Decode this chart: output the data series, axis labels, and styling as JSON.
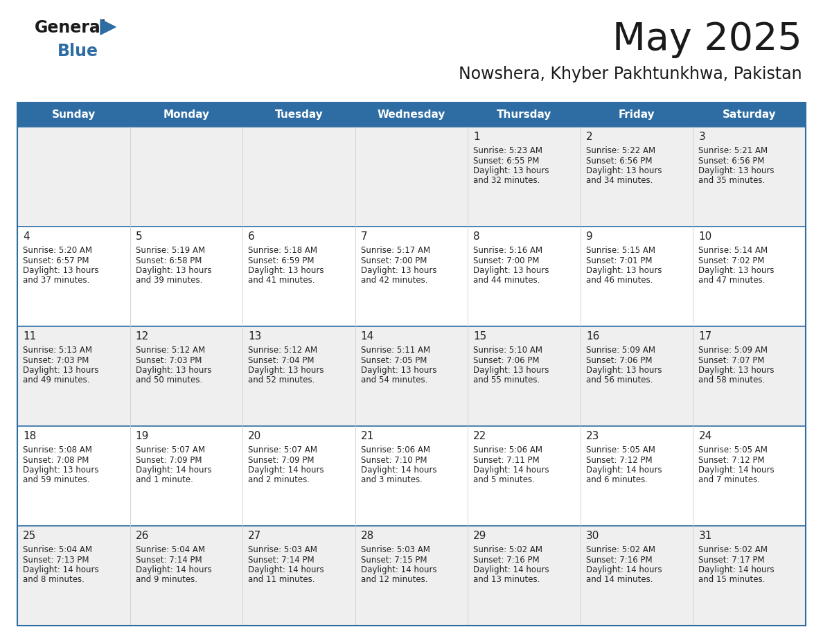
{
  "title": "May 2025",
  "subtitle": "Nowshera, Khyber Pakhtunkhwa, Pakistan",
  "days_of_week": [
    "Sunday",
    "Monday",
    "Tuesday",
    "Wednesday",
    "Thursday",
    "Friday",
    "Saturday"
  ],
  "header_bg": "#2E6DA4",
  "header_text": "#FFFFFF",
  "row_bg_odd": "#EFEFEF",
  "row_bg_even": "#FFFFFF",
  "cell_border": "#2E6DA4",
  "date_color": "#222222",
  "text_color": "#222222",
  "calendar_data": [
    [
      {
        "day": "",
        "sunrise": "",
        "sunset": "",
        "daylight": ""
      },
      {
        "day": "",
        "sunrise": "",
        "sunset": "",
        "daylight": ""
      },
      {
        "day": "",
        "sunrise": "",
        "sunset": "",
        "daylight": ""
      },
      {
        "day": "",
        "sunrise": "",
        "sunset": "",
        "daylight": ""
      },
      {
        "day": "1",
        "sunrise": "5:23 AM",
        "sunset": "6:55 PM",
        "daylight": "13 hours\nand 32 minutes."
      },
      {
        "day": "2",
        "sunrise": "5:22 AM",
        "sunset": "6:56 PM",
        "daylight": "13 hours\nand 34 minutes."
      },
      {
        "day": "3",
        "sunrise": "5:21 AM",
        "sunset": "6:56 PM",
        "daylight": "13 hours\nand 35 minutes."
      }
    ],
    [
      {
        "day": "4",
        "sunrise": "5:20 AM",
        "sunset": "6:57 PM",
        "daylight": "13 hours\nand 37 minutes."
      },
      {
        "day": "5",
        "sunrise": "5:19 AM",
        "sunset": "6:58 PM",
        "daylight": "13 hours\nand 39 minutes."
      },
      {
        "day": "6",
        "sunrise": "5:18 AM",
        "sunset": "6:59 PM",
        "daylight": "13 hours\nand 41 minutes."
      },
      {
        "day": "7",
        "sunrise": "5:17 AM",
        "sunset": "7:00 PM",
        "daylight": "13 hours\nand 42 minutes."
      },
      {
        "day": "8",
        "sunrise": "5:16 AM",
        "sunset": "7:00 PM",
        "daylight": "13 hours\nand 44 minutes."
      },
      {
        "day": "9",
        "sunrise": "5:15 AM",
        "sunset": "7:01 PM",
        "daylight": "13 hours\nand 46 minutes."
      },
      {
        "day": "10",
        "sunrise": "5:14 AM",
        "sunset": "7:02 PM",
        "daylight": "13 hours\nand 47 minutes."
      }
    ],
    [
      {
        "day": "11",
        "sunrise": "5:13 AM",
        "sunset": "7:03 PM",
        "daylight": "13 hours\nand 49 minutes."
      },
      {
        "day": "12",
        "sunrise": "5:12 AM",
        "sunset": "7:03 PM",
        "daylight": "13 hours\nand 50 minutes."
      },
      {
        "day": "13",
        "sunrise": "5:12 AM",
        "sunset": "7:04 PM",
        "daylight": "13 hours\nand 52 minutes."
      },
      {
        "day": "14",
        "sunrise": "5:11 AM",
        "sunset": "7:05 PM",
        "daylight": "13 hours\nand 54 minutes."
      },
      {
        "day": "15",
        "sunrise": "5:10 AM",
        "sunset": "7:06 PM",
        "daylight": "13 hours\nand 55 minutes."
      },
      {
        "day": "16",
        "sunrise": "5:09 AM",
        "sunset": "7:06 PM",
        "daylight": "13 hours\nand 56 minutes."
      },
      {
        "day": "17",
        "sunrise": "5:09 AM",
        "sunset": "7:07 PM",
        "daylight": "13 hours\nand 58 minutes."
      }
    ],
    [
      {
        "day": "18",
        "sunrise": "5:08 AM",
        "sunset": "7:08 PM",
        "daylight": "13 hours\nand 59 minutes."
      },
      {
        "day": "19",
        "sunrise": "5:07 AM",
        "sunset": "7:09 PM",
        "daylight": "14 hours\nand 1 minute."
      },
      {
        "day": "20",
        "sunrise": "5:07 AM",
        "sunset": "7:09 PM",
        "daylight": "14 hours\nand 2 minutes."
      },
      {
        "day": "21",
        "sunrise": "5:06 AM",
        "sunset": "7:10 PM",
        "daylight": "14 hours\nand 3 minutes."
      },
      {
        "day": "22",
        "sunrise": "5:06 AM",
        "sunset": "7:11 PM",
        "daylight": "14 hours\nand 5 minutes."
      },
      {
        "day": "23",
        "sunrise": "5:05 AM",
        "sunset": "7:12 PM",
        "daylight": "14 hours\nand 6 minutes."
      },
      {
        "day": "24",
        "sunrise": "5:05 AM",
        "sunset": "7:12 PM",
        "daylight": "14 hours\nand 7 minutes."
      }
    ],
    [
      {
        "day": "25",
        "sunrise": "5:04 AM",
        "sunset": "7:13 PM",
        "daylight": "14 hours\nand 8 minutes."
      },
      {
        "day": "26",
        "sunrise": "5:04 AM",
        "sunset": "7:14 PM",
        "daylight": "14 hours\nand 9 minutes."
      },
      {
        "day": "27",
        "sunrise": "5:03 AM",
        "sunset": "7:14 PM",
        "daylight": "14 hours\nand 11 minutes."
      },
      {
        "day": "28",
        "sunrise": "5:03 AM",
        "sunset": "7:15 PM",
        "daylight": "14 hours\nand 12 minutes."
      },
      {
        "day": "29",
        "sunrise": "5:02 AM",
        "sunset": "7:16 PM",
        "daylight": "14 hours\nand 13 minutes."
      },
      {
        "day": "30",
        "sunrise": "5:02 AM",
        "sunset": "7:16 PM",
        "daylight": "14 hours\nand 14 minutes."
      },
      {
        "day": "31",
        "sunrise": "5:02 AM",
        "sunset": "7:17 PM",
        "daylight": "14 hours\nand 15 minutes."
      }
    ]
  ]
}
